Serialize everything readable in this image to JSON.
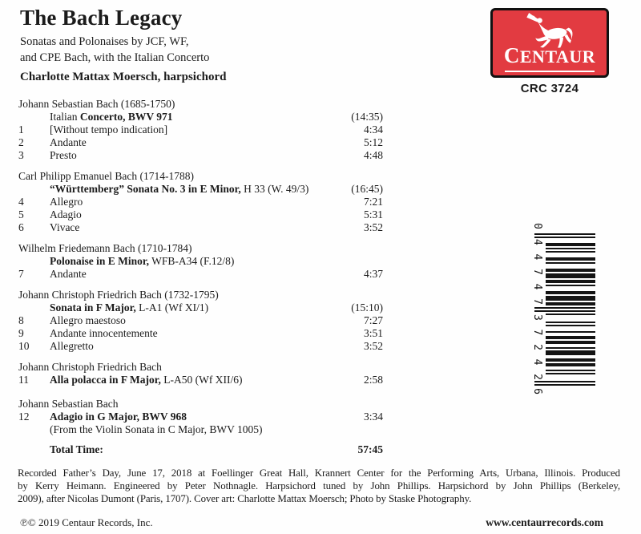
{
  "album": {
    "title": "The Bach Legacy",
    "subtitle_line1": "Sonatas and Polonaises by JCF, WF,",
    "subtitle_line2": "and CPE Bach, with the Italian Concerto",
    "performer": "Charlotte Mattax Moersch, harpsichord"
  },
  "label": {
    "name": "CENTAUR",
    "catalog_number": "CRC 3724",
    "brand_red": "#e23b41",
    "copyright": "℗© 2019 Centaur Records, Inc.",
    "website": "www.centaurrecords.com"
  },
  "barcode": {
    "digits": "044747372426",
    "display_groups": [
      "0",
      "44747",
      "37242",
      "6"
    ]
  },
  "sections": [
    {
      "composer": "Johann Sebastian Bach (1685-1750)",
      "work": {
        "segments": [
          {
            "t": "Italian ",
            "b": false
          },
          {
            "t": "Concerto, BWV 971",
            "b": true
          }
        ],
        "time": "(14:35)"
      },
      "tracks": [
        {
          "no": "1",
          "title": "[Without tempo indication]",
          "time": "4:34"
        },
        {
          "no": "2",
          "title": "Andante",
          "time": "5:12"
        },
        {
          "no": "3",
          "title": "Presto",
          "time": "4:48"
        }
      ]
    },
    {
      "composer": "Carl Philipp Emanuel Bach (1714-1788)",
      "work": {
        "segments": [
          {
            "t": "“Württemberg” Sonata No. 3 in E Minor,",
            "b": true
          },
          {
            "t": " H 33 (W. 49/3)",
            "b": false
          }
        ],
        "time": "(16:45)"
      },
      "tracks": [
        {
          "no": "4",
          "title": "Allegro",
          "time": "7:21"
        },
        {
          "no": "5",
          "title": "Adagio",
          "time": "5:31"
        },
        {
          "no": "6",
          "title": "Vivace",
          "time": "3:52"
        }
      ]
    },
    {
      "composer": "Wilhelm Friedemann Bach (1710-1784)",
      "work": {
        "segments": [
          {
            "t": "Polonaise in E Minor,",
            "b": true
          },
          {
            "t": " WFB-A34 (F.12/8)",
            "b": false
          }
        ],
        "time": ""
      },
      "tracks": [
        {
          "no": "7",
          "title": "Andante",
          "time": "4:37"
        }
      ]
    },
    {
      "composer": "Johann Christoph Friedrich Bach (1732-1795)",
      "work": {
        "segments": [
          {
            "t": "Sonata in F Major,",
            "b": true
          },
          {
            "t": " L-A1 (Wf XI/1)",
            "b": false
          }
        ],
        "time": "(15:10)"
      },
      "tracks": [
        {
          "no": "8",
          "title": "Allegro maestoso",
          "time": "7:27"
        },
        {
          "no": "9",
          "title": "Andante innocentemente",
          "time": "3:51"
        },
        {
          "no": "10",
          "title": "Allegretto",
          "time": "3:52"
        }
      ]
    },
    {
      "composer": "Johann Christoph Friedrich Bach",
      "tracks": [
        {
          "no": "11",
          "segments": [
            {
              "t": "Alla polacca in F Major,",
              "b": true
            },
            {
              "t": " L-A50 (Wf XII/6)",
              "b": false
            }
          ],
          "time": "2:58"
        }
      ]
    },
    {
      "composer": "Johann Sebastian Bach",
      "gap": 14,
      "tracks": [
        {
          "no": "12",
          "segments": [
            {
              "t": "Adagio in G Major, BWV 968",
              "b": true
            }
          ],
          "time": "3:34",
          "note": "(From the Violin Sonata in C Major, BWV 1005)"
        }
      ]
    }
  ],
  "total": {
    "label": "Total Time:",
    "time": "57:45"
  },
  "credits_lines": [
    "Recorded Father’s Day, June 17, 2018 at Foellinger Great Hall, Krannert Center for the Performing Arts, Urbana, Illinois. Produced",
    "by Kerry Heimann. Engineered by Peter Nothnagle. Harpsichord tuned by John Phillips. Harpsichord by John Phillips (Berkeley,",
    "2009), after Nicolas Dumont (Paris, 1707). Cover art: Charlotte Mattax Moersch; Photo by Staske Photography."
  ]
}
